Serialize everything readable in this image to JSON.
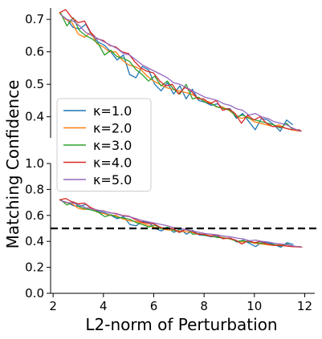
{
  "chart_data": [
    {
      "type": "line",
      "panel": "top-zoom",
      "xlim": [
        1.9,
        12.2
      ],
      "ylim": [
        0.335,
        0.735
      ],
      "yticks": [
        {
          "value": 0.4,
          "label": "0.4"
        },
        {
          "value": 0.5,
          "label": "0.5"
        },
        {
          "value": 0.6,
          "label": "0.6"
        },
        {
          "value": 0.7,
          "label": "0.7"
        }
      ],
      "grid": false
    },
    {
      "type": "line",
      "panel": "bottom-full",
      "xlim": [
        1.9,
        12.4
      ],
      "ylim": [
        0.0,
        1.0
      ],
      "xlabel": "L2-norm of Perturbation",
      "ylabel": "Matching Confidence",
      "xticks": [
        {
          "value": 2,
          "label": "2"
        },
        {
          "value": 4,
          "label": "4"
        },
        {
          "value": 6,
          "label": "6"
        },
        {
          "value": 8,
          "label": "8"
        },
        {
          "value": 10,
          "label": "10"
        },
        {
          "value": 12,
          "label": "12"
        }
      ],
      "yticks": [
        {
          "value": 0.0,
          "label": "0.0"
        },
        {
          "value": 0.2,
          "label": "0.2"
        },
        {
          "value": 0.4,
          "label": "0.4"
        },
        {
          "value": 0.6,
          "label": "0.6"
        },
        {
          "value": 0.8,
          "label": "0.8"
        },
        {
          "value": 1.0,
          "label": "1.0"
        }
      ],
      "reference_line": {
        "y": 0.5,
        "style": "dashed",
        "color": "#000000"
      },
      "legend_position": "upper-left",
      "grid": false
    }
  ],
  "series": [
    {
      "name": "κ=1.0",
      "color": "#1f77b4",
      "x": [
        2.3,
        2.55,
        2.8,
        3.05,
        3.3,
        3.55,
        3.8,
        4.05,
        4.3,
        4.55,
        4.8,
        5.05,
        5.3,
        5.55,
        5.8,
        6.05,
        6.3,
        6.55,
        6.8,
        7.05,
        7.3,
        7.55,
        7.8,
        8.05,
        8.3,
        8.55,
        8.8,
        9.05,
        9.3,
        9.55,
        9.8,
        10.05,
        10.3,
        10.55,
        10.8,
        11.05,
        11.3,
        11.55
      ],
      "y": [
        0.715,
        0.7,
        0.675,
        0.67,
        0.685,
        0.65,
        0.63,
        0.62,
        0.6,
        0.575,
        0.59,
        0.53,
        0.52,
        0.555,
        0.545,
        0.5,
        0.48,
        0.505,
        0.47,
        0.495,
        0.455,
        0.485,
        0.45,
        0.445,
        0.435,
        0.44,
        0.425,
        0.425,
        0.395,
        0.41,
        0.385,
        0.36,
        0.395,
        0.39,
        0.375,
        0.355,
        0.39,
        0.375
      ]
    },
    {
      "name": "κ=2.0",
      "color": "#ff7f0e",
      "x": [
        2.25,
        2.5,
        2.75,
        3.0,
        3.25,
        3.5,
        3.75,
        4.0,
        4.25,
        4.5,
        4.75,
        5.0,
        5.25,
        5.5,
        5.75,
        6.0,
        6.25,
        6.5,
        6.75,
        7.0,
        7.25,
        7.5,
        7.75,
        8.0,
        8.25,
        8.5,
        8.75,
        9.0,
        9.25,
        9.5,
        9.75,
        10.0,
        10.25,
        10.5,
        10.75,
        11.0,
        11.25,
        11.5,
        11.8
      ],
      "y": [
        0.72,
        0.7,
        0.69,
        0.655,
        0.645,
        0.66,
        0.625,
        0.615,
        0.6,
        0.6,
        0.575,
        0.56,
        0.555,
        0.545,
        0.525,
        0.51,
        0.5,
        0.49,
        0.485,
        0.48,
        0.475,
        0.47,
        0.46,
        0.45,
        0.445,
        0.43,
        0.43,
        0.42,
        0.405,
        0.395,
        0.4,
        0.385,
        0.38,
        0.375,
        0.37,
        0.375,
        0.365,
        0.36,
        0.355
      ]
    },
    {
      "name": "κ=3.0",
      "color": "#2ca02c",
      "x": [
        2.3,
        2.55,
        2.8,
        3.05,
        3.3,
        3.55,
        3.8,
        4.05,
        4.3,
        4.55,
        4.8,
        5.05,
        5.3,
        5.55,
        5.8,
        6.05,
        6.3,
        6.55,
        6.8,
        7.05,
        7.3,
        7.55,
        7.8,
        8.05,
        8.3,
        8.55,
        8.8,
        9.05,
        9.3,
        9.55,
        9.8,
        10.05,
        10.3,
        10.55,
        10.8,
        11.05,
        11.3,
        11.55
      ],
      "y": [
        0.72,
        0.68,
        0.705,
        0.665,
        0.65,
        0.64,
        0.625,
        0.59,
        0.605,
        0.585,
        0.58,
        0.57,
        0.545,
        0.53,
        0.51,
        0.525,
        0.495,
        0.51,
        0.485,
        0.47,
        0.5,
        0.455,
        0.46,
        0.445,
        0.44,
        0.43,
        0.425,
        0.42,
        0.4,
        0.405,
        0.395,
        0.39,
        0.385,
        0.38,
        0.375,
        0.365,
        0.38,
        0.36
      ]
    },
    {
      "name": "κ=4.0",
      "color": "#d62728",
      "x": [
        2.25,
        2.5,
        2.75,
        3.0,
        3.25,
        3.5,
        3.75,
        4.0,
        4.25,
        4.5,
        4.75,
        5.0,
        5.25,
        5.5,
        5.75,
        6.0,
        6.25,
        6.5,
        6.75,
        7.0,
        7.25,
        7.5,
        7.75,
        8.0,
        8.25,
        8.5,
        8.75,
        9.0,
        9.25,
        9.5,
        9.75,
        10.0,
        10.25,
        10.5,
        10.75,
        11.0,
        11.25,
        11.5,
        11.8,
        11.9
      ],
      "y": [
        0.72,
        0.73,
        0.705,
        0.69,
        0.695,
        0.66,
        0.64,
        0.635,
        0.62,
        0.615,
        0.6,
        0.595,
        0.57,
        0.55,
        0.54,
        0.535,
        0.51,
        0.495,
        0.5,
        0.47,
        0.49,
        0.48,
        0.455,
        0.455,
        0.44,
        0.45,
        0.42,
        0.425,
        0.41,
        0.38,
        0.405,
        0.39,
        0.4,
        0.38,
        0.37,
        0.37,
        0.365,
        0.36,
        0.36,
        0.355
      ]
    },
    {
      "name": "κ=5.0",
      "color": "#9467bd",
      "x": [
        2.3,
        2.55,
        2.8,
        3.05,
        3.3,
        3.55,
        3.8,
        4.05,
        4.3,
        4.55,
        4.8,
        5.05,
        5.3,
        5.55,
        5.8,
        6.05,
        6.3,
        6.55,
        6.8,
        7.05,
        7.3,
        7.55,
        7.8,
        8.05,
        8.3,
        8.55,
        8.8,
        9.05,
        9.3,
        9.55,
        9.8,
        10.05,
        10.3,
        10.55,
        10.8,
        11.05,
        11.3,
        11.55,
        11.85
      ],
      "y": [
        0.715,
        0.7,
        0.695,
        0.68,
        0.66,
        0.65,
        0.64,
        0.63,
        0.62,
        0.61,
        0.595,
        0.59,
        0.575,
        0.56,
        0.55,
        0.54,
        0.53,
        0.52,
        0.505,
        0.5,
        0.49,
        0.48,
        0.47,
        0.46,
        0.455,
        0.45,
        0.44,
        0.435,
        0.425,
        0.42,
        0.405,
        0.41,
        0.4,
        0.395,
        0.385,
        0.38,
        0.375,
        0.365,
        0.355
      ]
    }
  ]
}
